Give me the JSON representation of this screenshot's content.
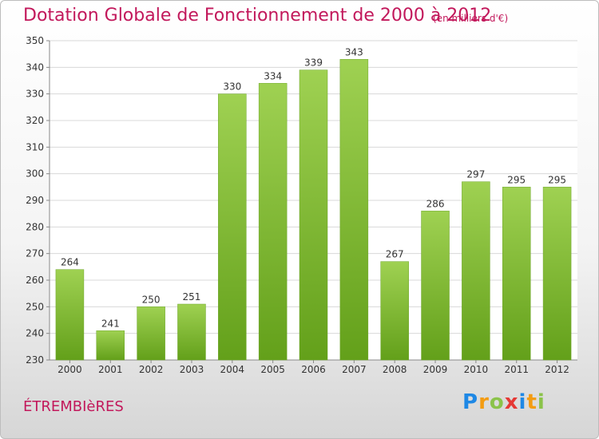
{
  "title": "Dotation Globale de Fonctionnement de 2000 à 2012",
  "subtitle": "(en milliers d'€)",
  "commune": "ÉTREMBIèRES",
  "logo": {
    "letters": [
      "P",
      "r",
      "o",
      "x",
      "i",
      "t",
      "i"
    ],
    "colors": [
      "#1e88e5",
      "#f39c12",
      "#8bc34a",
      "#e53935",
      "#1e88e5",
      "#f39c12",
      "#8bc34a"
    ]
  },
  "chart_data": {
    "type": "bar",
    "categories": [
      "2000",
      "2001",
      "2002",
      "2003",
      "2004",
      "2005",
      "2006",
      "2007",
      "2008",
      "2009",
      "2010",
      "2011",
      "2012"
    ],
    "values": [
      264,
      241,
      250,
      251,
      330,
      334,
      339,
      343,
      267,
      286,
      297,
      295,
      295
    ],
    "value_labels": [
      "264",
      "241",
      "250",
      "251",
      "330",
      "334",
      "339",
      "343",
      "267",
      "286",
      "297",
      "295",
      "295"
    ],
    "yticks": [
      "230",
      "240",
      "250",
      "260",
      "270",
      "280",
      "290",
      "300",
      "310",
      "320",
      "330",
      "340",
      "350"
    ],
    "ylim": [
      230,
      350
    ],
    "grid": true,
    "bar_color": "#7cb82f"
  }
}
